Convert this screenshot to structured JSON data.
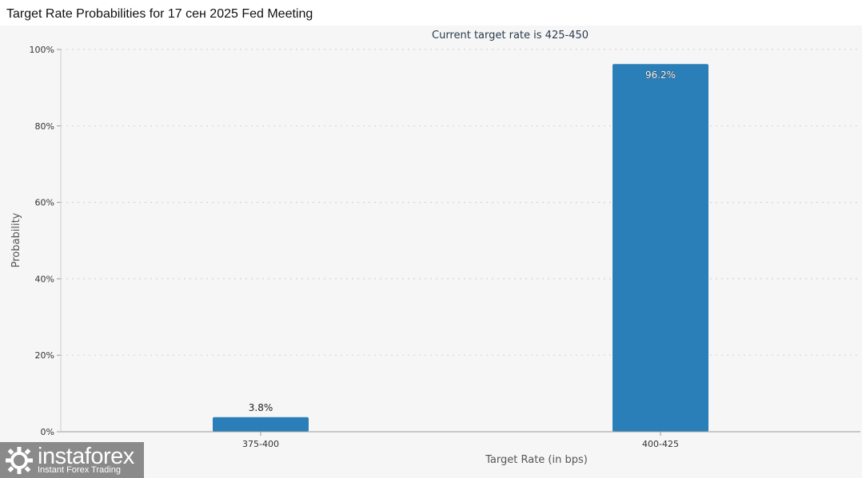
{
  "page": {
    "title": "Target Rate Probabilities for 17 сен 2025 Fed Meeting"
  },
  "chart_data": {
    "type": "bar",
    "title": "Current target rate is 425-450",
    "xlabel": "Target Rate (in bps)",
    "ylabel": "Probability",
    "categories": [
      "375-400",
      "400-425"
    ],
    "values": [
      3.8,
      96.2
    ],
    "value_labels": [
      "3.8%",
      "96.2%"
    ],
    "ylim": [
      0,
      100
    ],
    "yticks": [
      0,
      20,
      40,
      60,
      80,
      100
    ],
    "ytick_labels": [
      "0%",
      "20%",
      "40%",
      "60%",
      "80%",
      "100%"
    ],
    "grid": "horizontal-dotted",
    "bar_color": "#2b7fb8",
    "background_color": "#f6f6f6"
  },
  "watermark": {
    "name": "instaforex",
    "tagline": "Instant Forex Trading",
    "background_color": "#8a8a8a"
  }
}
